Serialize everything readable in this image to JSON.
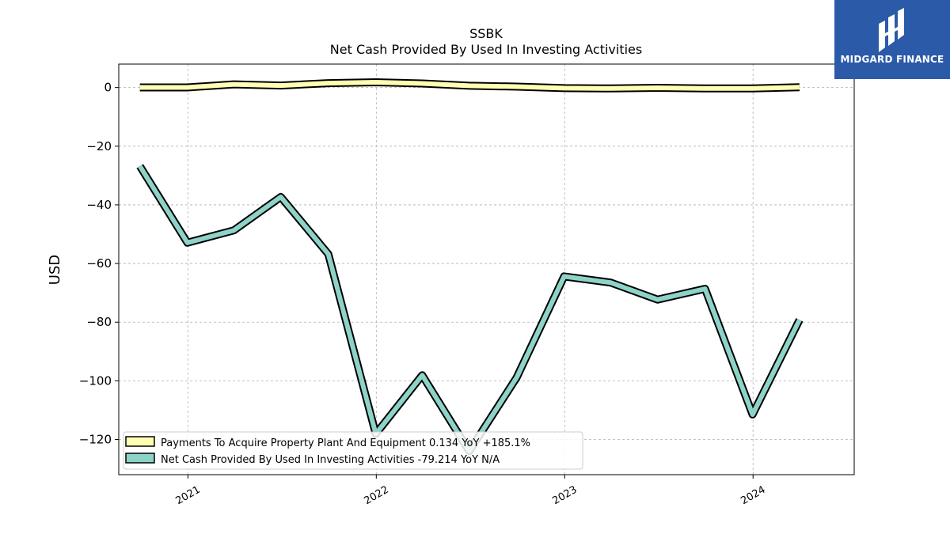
{
  "brand": {
    "name": "MIDGARD FINANCE",
    "bg_color": "#2b5aa8"
  },
  "chart_data": {
    "type": "line",
    "title": "SSBK",
    "subtitle": "Net Cash Provided By Used In Investing Activities",
    "xlabel": "",
    "ylabel": "USD",
    "xlim": [
      "2020-08-20",
      "2024-07-15"
    ],
    "ylim": [
      -132,
      8
    ],
    "x_ticks": [
      "2021",
      "2022",
      "2023",
      "2024"
    ],
    "y_ticks": [
      0,
      -20,
      -40,
      -60,
      -80,
      -100,
      -120
    ],
    "grid": true,
    "legend_position": "lower-left",
    "x": [
      "2020-09-30",
      "2020-12-31",
      "2021-03-31",
      "2021-06-30",
      "2021-09-30",
      "2021-12-31",
      "2022-03-31",
      "2022-06-30",
      "2022-09-30",
      "2022-12-31",
      "2023-03-31",
      "2023-06-30",
      "2023-09-30",
      "2023-12-31",
      "2024-03-31"
    ],
    "series": [
      {
        "name": "Payments To Acquire Property Plant And Equipment",
        "legend_label": "Payments To Acquire Property Plant And Equipment  0.134 YoY +185.1%",
        "color": "#ffffb3",
        "values": [
          0.047,
          0.047,
          1.1,
          0.7,
          1.5,
          1.8,
          1.4,
          0.6,
          0.3,
          -0.2,
          -0.3,
          -0.1,
          -0.3,
          -0.3,
          0.134
        ]
      },
      {
        "name": "Net Cash Provided By Used In Investing Activities",
        "legend_label": "Net Cash Provided By Used In Investing Activities  -79.214 YoY N/A",
        "color": "#8dd3c7",
        "values": [
          -26.8,
          -52.9,
          -48.7,
          -37.3,
          -56.8,
          -118.1,
          -98.1,
          -124.0,
          -98.9,
          -64.4,
          -66.5,
          -72.3,
          -68.6,
          -111.5,
          -79.214
        ]
      }
    ]
  }
}
